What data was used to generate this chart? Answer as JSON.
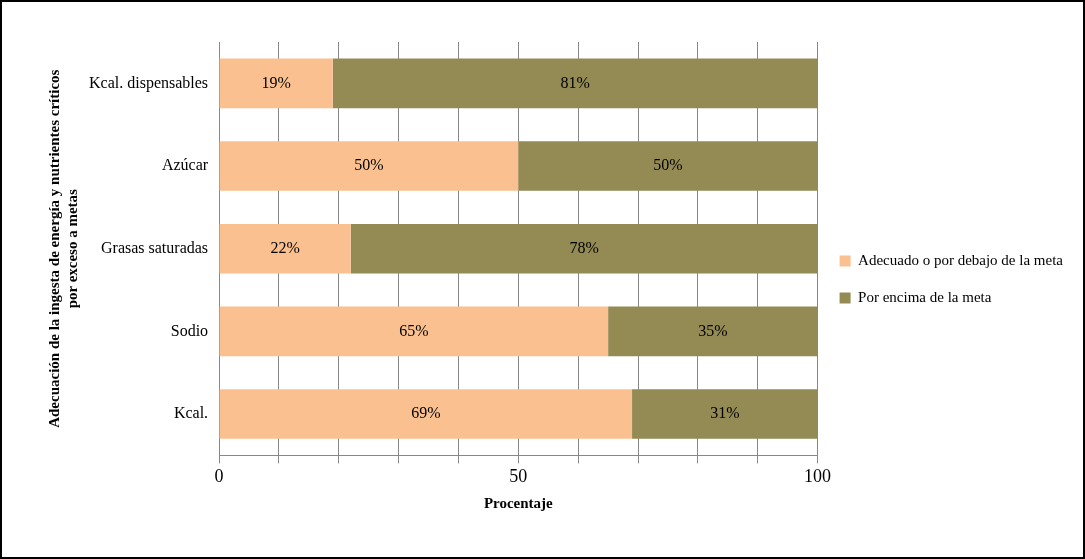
{
  "chart_data": {
    "type": "bar",
    "orientation": "horizontal",
    "stacked": true,
    "ylabel": "Adecuación de la ingesta de energía y nutrientes críticos por exceso a metas",
    "xlabel": "Procentaje",
    "categories": [
      "Kcal. dispensables",
      "Azúcar",
      "Grasas saturadas",
      "Sodio",
      "Kcal."
    ],
    "series": [
      {
        "name": "Adecuado o por debajo de la meta",
        "color": "#fac090",
        "values": [
          19,
          50,
          22,
          65,
          69
        ],
        "value_labels": [
          "19%",
          "50%",
          "22%",
          "65%",
          "69%"
        ]
      },
      {
        "name": "Por encima de la meta",
        "color": "#948a54",
        "values": [
          81,
          50,
          78,
          35,
          31
        ],
        "value_labels": [
          "81%",
          "50%",
          "78%",
          "35%",
          "31%"
        ]
      }
    ],
    "xlim": [
      0,
      100
    ],
    "xticks": [
      0,
      {
        "value": 10,
        "label": null
      },
      {
        "value": 20,
        "label": null
      },
      {
        "value": 30,
        "label": null
      },
      {
        "value": 40,
        "label": null
      },
      50,
      {
        "value": 60,
        "label": null
      },
      {
        "value": 70,
        "label": null
      },
      {
        "value": 80,
        "label": null
      },
      {
        "value": 90,
        "label": null
      },
      100
    ],
    "grid": "x",
    "legend": "right"
  }
}
